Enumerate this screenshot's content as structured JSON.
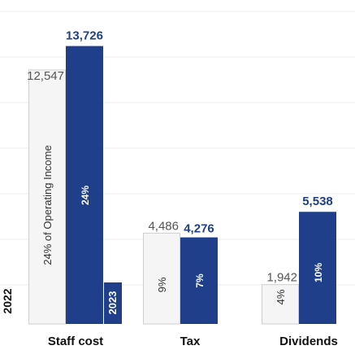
{
  "chart_data": {
    "type": "bar",
    "categories": [
      "Staff cost",
      "Tax",
      "Dividends"
    ],
    "series": [
      {
        "name": "2022",
        "values": [
          12547,
          4486,
          1942
        ],
        "pct_labels": [
          "24% of Operating Income",
          "9%",
          "4%"
        ],
        "color": "#f5f5f5"
      },
      {
        "name": "2023",
        "values": [
          13726,
          4276,
          5538
        ],
        "pct_labels": [
          "24%",
          "7%",
          "10%"
        ],
        "color": "#1f3f8a"
      }
    ],
    "value_labels": {
      "2022": [
        "12,547",
        "4,486",
        "1,942"
      ],
      "2023": [
        "13,726",
        "4,276",
        "5,538"
      ]
    },
    "title": "",
    "xlabel": "",
    "ylabel": "",
    "ylim": [
      0,
      16000
    ],
    "grid": true,
    "legend": "inline year labels at bottom of first category"
  }
}
